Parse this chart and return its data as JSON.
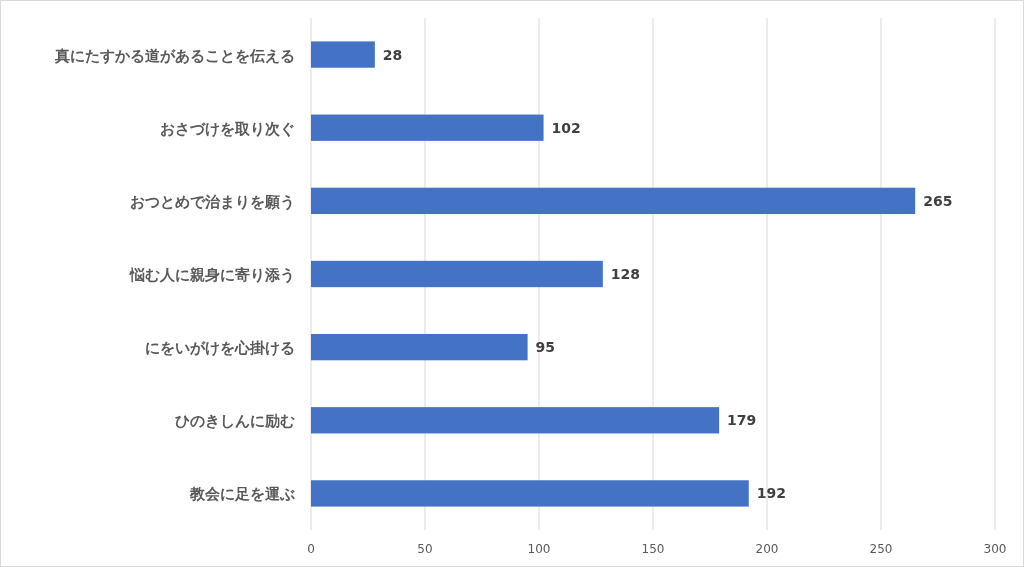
{
  "chart_data": {
    "type": "bar",
    "orientation": "horizontal",
    "categories": [
      "真にたすかる道があることを伝える",
      "おさづけを取り次ぐ",
      "おつとめで治まりを願う",
      "悩む人に親身に寄り添う",
      "にをいがけを心掛ける",
      "ひのきしんに励む",
      "教会に足を運ぶ"
    ],
    "values": [
      28,
      102,
      265,
      128,
      95,
      179,
      192
    ],
    "color": "#4472c4",
    "xlim": [
      0,
      300
    ],
    "xticks": [
      0,
      50,
      100,
      150,
      200,
      250,
      300
    ],
    "grid": "x",
    "data_labels": true
  }
}
